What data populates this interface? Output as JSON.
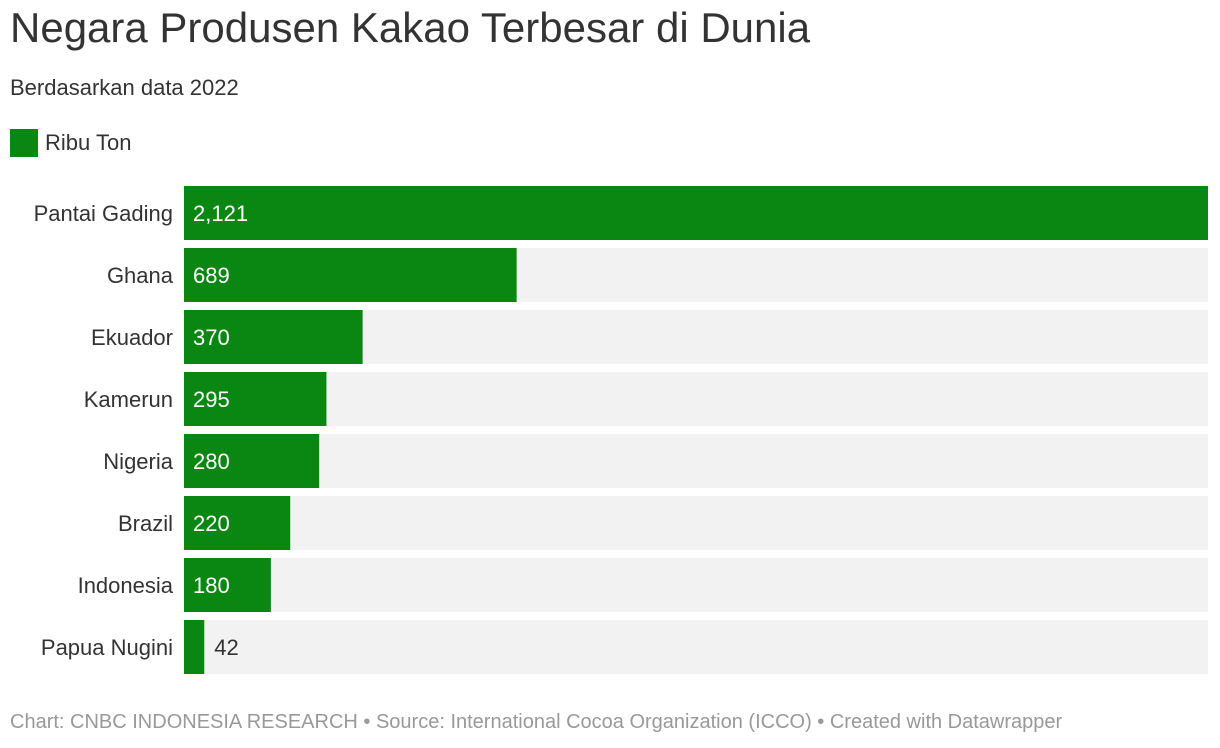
{
  "title": "Negara Produsen Kakao Terbesar di Dunia",
  "subtitle": "Berdasarkan data 2022",
  "legend": {
    "label": "Ribu Ton",
    "color": "#0a8712"
  },
  "colors": {
    "bar": "#0a8712",
    "track": "#f2f2f2"
  },
  "chart_data": {
    "type": "bar",
    "orientation": "horizontal",
    "categories": [
      "Pantai Gading",
      "Ghana",
      "Ekuador",
      "Kamerun",
      "Nigeria",
      "Brazil",
      "Indonesia",
      "Papua Nugini"
    ],
    "series": [
      {
        "name": "Ribu Ton",
        "values": [
          2121,
          689,
          370,
          295,
          280,
          220,
          180,
          42
        ]
      }
    ],
    "value_labels": [
      "2,121",
      "689",
      "370",
      "295",
      "280",
      "220",
      "180",
      "42"
    ],
    "xlim": [
      0,
      2121
    ]
  },
  "footer": {
    "text": "Chart: CNBC INDONESIA RESEARCH • Source: International Cocoa Organization (ICCO) • Created with Datawrapper"
  }
}
